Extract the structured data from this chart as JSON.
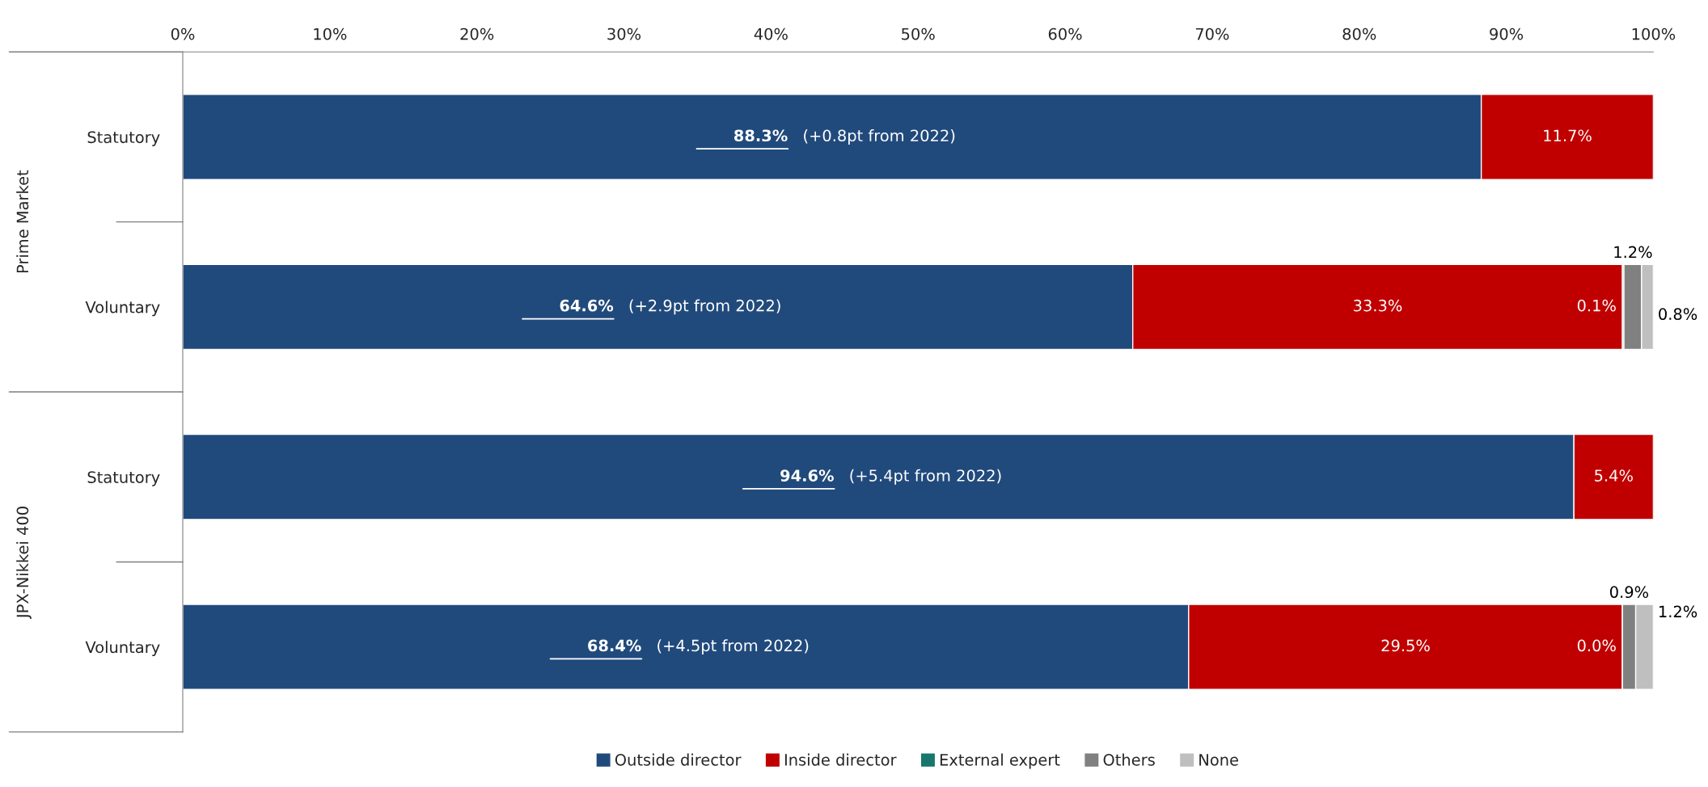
{
  "chart_data": {
    "type": "bar",
    "orientation": "horizontal",
    "stacked": true,
    "categories": [
      "Statutory",
      "Voluntary",
      "Statutory",
      "Voluntary"
    ],
    "series": [
      {
        "name": "Outside director",
        "color": "#214a7c",
        "values": [
          88.3,
          64.6,
          94.6,
          68.4
        ],
        "value_labels": [
          "88.3%",
          "64.6%",
          "94.6%",
          "68.4%"
        ]
      },
      {
        "name": "Inside director",
        "color": "#c00000",
        "values": [
          11.7,
          33.3,
          5.4,
          29.5
        ],
        "value_labels": [
          "11.7%",
          "33.3%",
          "5.4%",
          "29.5%"
        ]
      },
      {
        "name": "External expert",
        "color": "#17776b",
        "values": [
          null,
          0.1,
          null,
          0.0
        ],
        "value_labels": [
          null,
          "0.1%",
          null,
          "0.0%"
        ]
      },
      {
        "name": "Others",
        "color": "#808080",
        "values": [
          null,
          1.2,
          null,
          0.9
        ],
        "value_labels": [
          null,
          "1.2%",
          null,
          "0.9%"
        ]
      },
      {
        "name": "None",
        "color": "#bfbfbf",
        "values": [
          null,
          0.8,
          null,
          1.2
        ],
        "value_labels": [
          null,
          "0.8%",
          null,
          "1.2%"
        ]
      }
    ],
    "xlim": [
      0,
      100
    ],
    "xticks": [
      {
        "value": 0,
        "label": "0%"
      },
      {
        "value": 10,
        "label": "10%"
      },
      {
        "value": 20,
        "label": "20%"
      },
      {
        "value": 30,
        "label": "30%"
      },
      {
        "value": 40,
        "label": "40%"
      },
      {
        "value": 50,
        "label": "50%"
      },
      {
        "value": 60,
        "label": "60%"
      },
      {
        "value": 70,
        "label": "70%"
      },
      {
        "value": 80,
        "label": "80%"
      },
      {
        "value": 90,
        "label": "90%"
      },
      {
        "value": 100,
        "label": "100%"
      }
    ],
    "annotations": [
      "(+0.8pt from 2022)",
      "(+2.9pt from 2022)",
      "(+5.4pt from 2022)",
      "(+4.5pt from 2022)",
      "Prime Market",
      "JPX-Nikkei 400"
    ],
    "grid": false,
    "legend": "bottom"
  }
}
